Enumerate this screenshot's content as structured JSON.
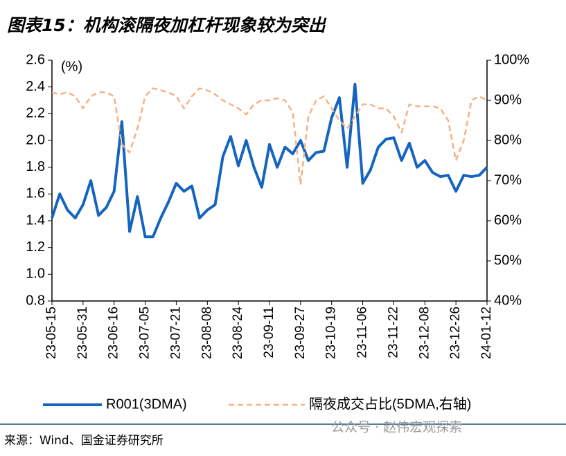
{
  "title": "图表15：机构滚隔夜加杠杆现象较为突出",
  "source": "来源：Wind、国金证券研究所",
  "watermark": "公众号 · 赵伟宏观探索",
  "chart_data": {
    "type": "line",
    "annotation": "(%)",
    "categories": [
      "23-05-15",
      null,
      null,
      null,
      "23-05-31",
      null,
      null,
      null,
      "23-06-16",
      null,
      null,
      null,
      "23-07-05",
      null,
      null,
      null,
      "23-07-21",
      null,
      null,
      null,
      "23-08-08",
      null,
      null,
      null,
      "23-08-24",
      null,
      null,
      null,
      "23-09-11",
      null,
      null,
      null,
      "23-09-27",
      null,
      null,
      null,
      "23-10-19",
      null,
      null,
      null,
      "23-11-06",
      null,
      null,
      null,
      "23-11-22",
      null,
      null,
      null,
      "23-12-08",
      null,
      null,
      null,
      "23-12-26",
      null,
      null,
      null,
      "24-01-12"
    ],
    "series": [
      {
        "name": "R001(3DMA)",
        "color": "#1565c0",
        "values": [
          1.42,
          1.6,
          1.48,
          1.42,
          1.52,
          1.7,
          1.44,
          1.5,
          1.62,
          2.14,
          1.32,
          1.58,
          1.28,
          1.28,
          1.42,
          1.54,
          1.68,
          1.62,
          1.66,
          1.42,
          1.48,
          1.52,
          1.88,
          2.03,
          1.81,
          2.0,
          1.8,
          1.65,
          1.97,
          1.8,
          1.95,
          1.9,
          2.0,
          1.85,
          1.91,
          1.92,
          2.17,
          2.32,
          1.8,
          2.42,
          1.68,
          1.78,
          1.95,
          2.01,
          2.02,
          1.85,
          1.98,
          1.8,
          1.85,
          1.76,
          1.73,
          1.74,
          1.62,
          1.74,
          1.73,
          1.74,
          1.8
        ]
      },
      {
        "name": "隔夜成交占比(5DMA,右轴)",
        "color": "#f4b183",
        "axis": "y2",
        "dashed": true,
        "values": [
          92,
          91.5,
          92,
          91,
          88,
          91,
          92,
          92,
          91,
          79,
          77,
          83,
          91,
          93,
          92.5,
          92,
          91,
          88,
          91,
          93,
          92.5,
          91.5,
          90,
          89,
          88,
          86.5,
          89,
          90,
          90,
          90.5,
          90,
          87,
          69,
          86,
          90,
          91,
          88,
          85,
          83,
          86,
          89,
          89,
          88,
          88,
          86,
          82,
          89,
          88.5,
          88.5,
          88.5,
          88,
          85,
          75,
          80,
          90,
          91,
          90
        ]
      }
    ],
    "ylim": [
      0.8,
      2.6
    ],
    "yticks": [
      0.8,
      {
        "value": 1,
        "label": "1.0"
      },
      1.2,
      1.4,
      1.6,
      1.8,
      {
        "value": 2,
        "label": "2.0"
      },
      2.2,
      2.4,
      2.6
    ],
    "y2lim": [
      40,
      100
    ],
    "y2ticks": [
      {
        "value": 40,
        "label": "40%"
      },
      {
        "value": 50,
        "label": "50%"
      },
      {
        "value": 60,
        "label": "60%"
      },
      {
        "value": 70,
        "label": "70%"
      },
      {
        "value": 80,
        "label": "80%"
      },
      {
        "value": 90,
        "label": "90%"
      },
      {
        "value": 100,
        "label": "100%"
      }
    ],
    "legend": "bottom"
  }
}
